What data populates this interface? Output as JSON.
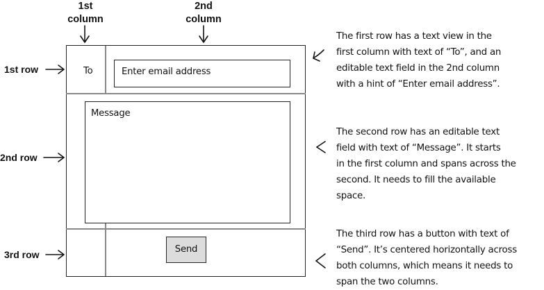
{
  "columns": {
    "first": [
      "1st",
      "column"
    ],
    "second": [
      "2nd",
      "column"
    ]
  },
  "rows": {
    "first": "1st row",
    "second": "2nd row",
    "third": "3rd row"
  },
  "mockup": {
    "to_label": "To",
    "email_hint": "Enter email address",
    "message_hint": "Message",
    "send_label": "Send"
  },
  "annotations": {
    "row1": [
      "The first row has a text view in the",
      "first column with text of “To”, and an",
      "editable text field in the 2nd column",
      "with a hint of “Enter email address”."
    ],
    "row2": [
      "The second row has an editable text",
      "field with text of “Message”. It starts",
      "in the first column and spans across the",
      "second. It needs to fill the available",
      "space."
    ],
    "row3": [
      "The third row has a button with text of",
      "“Send”. It’s centered horizontally across",
      "both columns, which means it needs to",
      "span the two columns."
    ]
  }
}
